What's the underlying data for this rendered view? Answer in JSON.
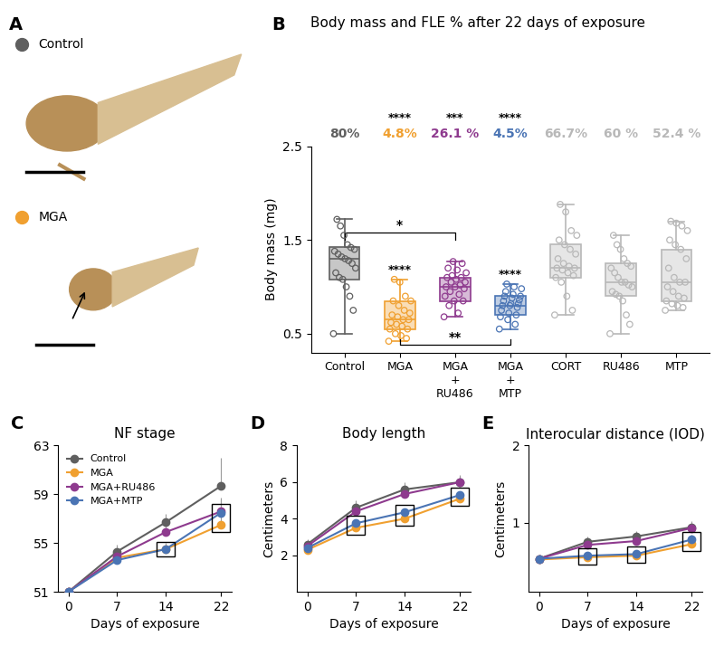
{
  "panel_a": {
    "panel": "A",
    "legend": [
      {
        "name": "Control",
        "color": "#5f5f5f"
      },
      {
        "name": "MGA",
        "color": "#f0a030"
      }
    ]
  },
  "chart_data": [
    {
      "type": "box",
      "panel": "B",
      "title": "Body mass and FLE % after 22 days of exposure",
      "y_label": "Body mass (mg)",
      "ylim": [
        0.3,
        2.5
      ],
      "yticks": [
        0.5,
        1.5,
        2.5
      ],
      "categories": [
        "Control",
        "MGA",
        "MGA\n+\nRU486",
        "MGA\n+\nMTP",
        "CORT",
        "RU486",
        "MTP"
      ],
      "groups": [
        {
          "color": "#5f5f5f",
          "fle": "80%",
          "median": 1.3,
          "q1": 1.08,
          "q3": 1.43,
          "whisker_low": 0.5,
          "whisker_high": 1.72,
          "points": [
            0.5,
            0.75,
            0.9,
            1.0,
            1.08,
            1.1,
            1.15,
            1.2,
            1.25,
            1.28,
            1.3,
            1.32,
            1.35,
            1.38,
            1.4,
            1.42,
            1.45,
            1.55,
            1.65,
            1.72
          ]
        },
        {
          "color": "#f0a030",
          "fle": "4.8%",
          "fle_stars": "****",
          "stars": "****",
          "median": 0.65,
          "q1": 0.55,
          "q3": 0.85,
          "whisker_low": 0.42,
          "whisker_high": 1.08,
          "points": [
            0.42,
            0.45,
            0.48,
            0.5,
            0.55,
            0.55,
            0.58,
            0.6,
            0.62,
            0.65,
            0.65,
            0.68,
            0.7,
            0.72,
            0.75,
            0.8,
            0.85,
            0.85,
            0.9,
            1.05,
            1.08
          ]
        },
        {
          "color": "#8e3a8e",
          "fle": "26.1 %",
          "fle_stars": "***",
          "median": 1.0,
          "q1": 0.85,
          "q3": 1.1,
          "whisker_low": 0.68,
          "whisker_high": 1.27,
          "points": [
            0.68,
            0.72,
            0.8,
            0.85,
            0.85,
            0.9,
            0.92,
            0.95,
            0.98,
            1.0,
            1.0,
            1.02,
            1.05,
            1.05,
            1.08,
            1.1,
            1.1,
            1.12,
            1.15,
            1.18,
            1.2,
            1.25,
            1.27
          ]
        },
        {
          "color": "#4a74b4",
          "fle": "4.5%",
          "fle_stars": "****",
          "stars": "****",
          "median": 0.8,
          "q1": 0.7,
          "q3": 0.9,
          "whisker_low": 0.55,
          "whisker_high": 1.03,
          "points": [
            0.55,
            0.6,
            0.65,
            0.68,
            0.7,
            0.72,
            0.75,
            0.78,
            0.8,
            0.8,
            0.82,
            0.82,
            0.85,
            0.86,
            0.88,
            0.9,
            0.9,
            0.92,
            0.95,
            0.98,
            1.0,
            1.03
          ]
        },
        {
          "color": "#b8b8b8",
          "fle": "66.7%",
          "median": 1.2,
          "q1": 1.1,
          "q3": 1.45,
          "whisker_low": 0.7,
          "whisker_high": 1.88,
          "points": [
            0.7,
            0.75,
            0.9,
            1.05,
            1.1,
            1.12,
            1.15,
            1.18,
            1.2,
            1.2,
            1.22,
            1.25,
            1.3,
            1.35,
            1.4,
            1.45,
            1.5,
            1.55,
            1.6,
            1.8,
            1.88
          ]
        },
        {
          "color": "#b8b8b8",
          "fle": "60 %",
          "median": 1.05,
          "q1": 0.9,
          "q3": 1.25,
          "whisker_low": 0.5,
          "whisker_high": 1.55,
          "points": [
            0.5,
            0.6,
            0.7,
            0.85,
            0.9,
            0.92,
            0.95,
            1.0,
            1.02,
            1.05,
            1.05,
            1.1,
            1.15,
            1.2,
            1.22,
            1.25,
            1.3,
            1.4,
            1.45,
            1.55
          ]
        },
        {
          "color": "#b8b8b8",
          "fle": "52.4 %",
          "median": 1.05,
          "q1": 0.85,
          "q3": 1.4,
          "whisker_low": 0.75,
          "whisker_high": 1.7,
          "points": [
            0.75,
            0.78,
            0.8,
            0.82,
            0.85,
            0.88,
            0.9,
            0.95,
            1.0,
            1.05,
            1.05,
            1.1,
            1.2,
            1.3,
            1.4,
            1.45,
            1.5,
            1.6,
            1.65,
            1.68,
            1.7
          ]
        }
      ],
      "comparisons": [
        {
          "groups": [
            0,
            2
          ],
          "text": "*"
        },
        {
          "groups": [
            1,
            3
          ],
          "text": "**"
        }
      ]
    },
    {
      "type": "line",
      "panel": "C",
      "title": "NF stage",
      "x_label": "Days of exposure",
      "legend": "upper left",
      "x": [
        0,
        7,
        14,
        22
      ],
      "xlim": [
        -1.5,
        23.5
      ],
      "xticks": [
        0,
        7,
        14,
        22
      ],
      "ylim": [
        51,
        63
      ],
      "yticks": [
        51,
        55,
        59,
        63
      ],
      "marker": "o",
      "series": [
        {
          "name": "Control",
          "color": "#5f5f5f",
          "values": [
            51,
            54.3,
            56.7,
            59.7
          ],
          "errors": [
            0,
            0.6,
            0.7,
            2.3
          ]
        },
        {
          "name": "MGA",
          "color": "#f0a030",
          "values": [
            51,
            53.8,
            54.5,
            56.5
          ],
          "errors": [
            0,
            0.5,
            0.5,
            0.8
          ]
        },
        {
          "name": "MGA+RU486",
          "color": "#8e3a8e",
          "values": [
            51,
            53.9,
            55.9,
            57.6
          ],
          "errors": [
            0,
            0.5,
            0.5,
            1.0
          ]
        },
        {
          "name": "MGA+MTP",
          "color": "#4a74b4",
          "values": [
            51,
            53.6,
            54.5,
            57.5
          ],
          "errors": [
            0,
            0.4,
            0.4,
            1.2
          ]
        }
      ],
      "highlights": [
        {
          "x": 14,
          "series": [
            "MGA",
            "MGA+MTP"
          ]
        },
        {
          "x": 22,
          "series": [
            "MGA",
            "MGA+RU486",
            "MGA+MTP"
          ]
        }
      ]
    },
    {
      "type": "line",
      "panel": "D",
      "title": "Body length",
      "x_label": "Days of exposure",
      "y_label": "Centimeters",
      "x": [
        0,
        7,
        14,
        22
      ],
      "xlim": [
        -1.5,
        23.5
      ],
      "xticks": [
        0,
        7,
        14,
        22
      ],
      "ylim": [
        0,
        8
      ],
      "yticks": [
        2,
        4,
        6,
        8
      ],
      "marker": "o",
      "series": [
        {
          "name": "Control",
          "color": "#5f5f5f",
          "values": [
            2.6,
            4.6,
            5.6,
            6.0
          ],
          "errors": [
            0.3,
            0.4,
            0.4,
            0.4
          ]
        },
        {
          "name": "MGA",
          "color": "#f0a030",
          "values": [
            2.3,
            3.5,
            4.0,
            5.1
          ],
          "errors": [
            0.2,
            0.2,
            0.2,
            0.2
          ]
        },
        {
          "name": "MGA+RU486",
          "color": "#8e3a8e",
          "values": [
            2.5,
            4.4,
            5.35,
            6.0
          ],
          "errors": [
            0.2,
            0.3,
            0.3,
            0.3
          ]
        },
        {
          "name": "MGA+MTP",
          "color": "#4a74b4",
          "values": [
            2.4,
            3.75,
            4.35,
            5.3
          ],
          "errors": [
            0.2,
            0.2,
            0.2,
            0.2
          ]
        }
      ],
      "highlights": [
        {
          "x": 7,
          "series": [
            "MGA",
            "MGA+MTP"
          ]
        },
        {
          "x": 14,
          "series": [
            "MGA",
            "MGA+MTP"
          ]
        },
        {
          "x": 22,
          "series": [
            "MGA",
            "MGA+MTP"
          ]
        }
      ]
    },
    {
      "type": "line",
      "panel": "E",
      "title": "Interocular distance (IOD)",
      "x_label": "Days of exposure",
      "y_label": "Centimeters",
      "x": [
        0,
        7,
        14,
        22
      ],
      "xlim": [
        -1.5,
        23.5
      ],
      "xticks": [
        0,
        7,
        14,
        22
      ],
      "ylim": [
        0.1,
        2
      ],
      "yticks": [
        1,
        2
      ],
      "marker": "o",
      "series": [
        {
          "name": "Control",
          "color": "#5f5f5f",
          "values": [
            0.53,
            0.75,
            0.82,
            0.94
          ],
          "errors": [
            0.04,
            0.07,
            0.07,
            0.08
          ]
        },
        {
          "name": "MGA",
          "color": "#f0a030",
          "values": [
            0.52,
            0.55,
            0.57,
            0.72
          ],
          "errors": [
            0.03,
            0.04,
            0.04,
            0.05
          ]
        },
        {
          "name": "MGA+RU486",
          "color": "#8e3a8e",
          "values": [
            0.53,
            0.71,
            0.76,
            0.93
          ],
          "errors": [
            0.04,
            0.05,
            0.05,
            0.06
          ]
        },
        {
          "name": "MGA+MTP",
          "color": "#4a74b4",
          "values": [
            0.53,
            0.57,
            0.59,
            0.78
          ],
          "errors": [
            0.03,
            0.04,
            0.04,
            0.06
          ]
        }
      ],
      "highlights": [
        {
          "x": 7,
          "series": [
            "MGA",
            "MGA+MTP"
          ]
        },
        {
          "x": 14,
          "series": [
            "MGA",
            "MGA+MTP"
          ]
        },
        {
          "x": 22,
          "series": [
            "MGA",
            "MGA+MTP"
          ]
        }
      ]
    }
  ]
}
